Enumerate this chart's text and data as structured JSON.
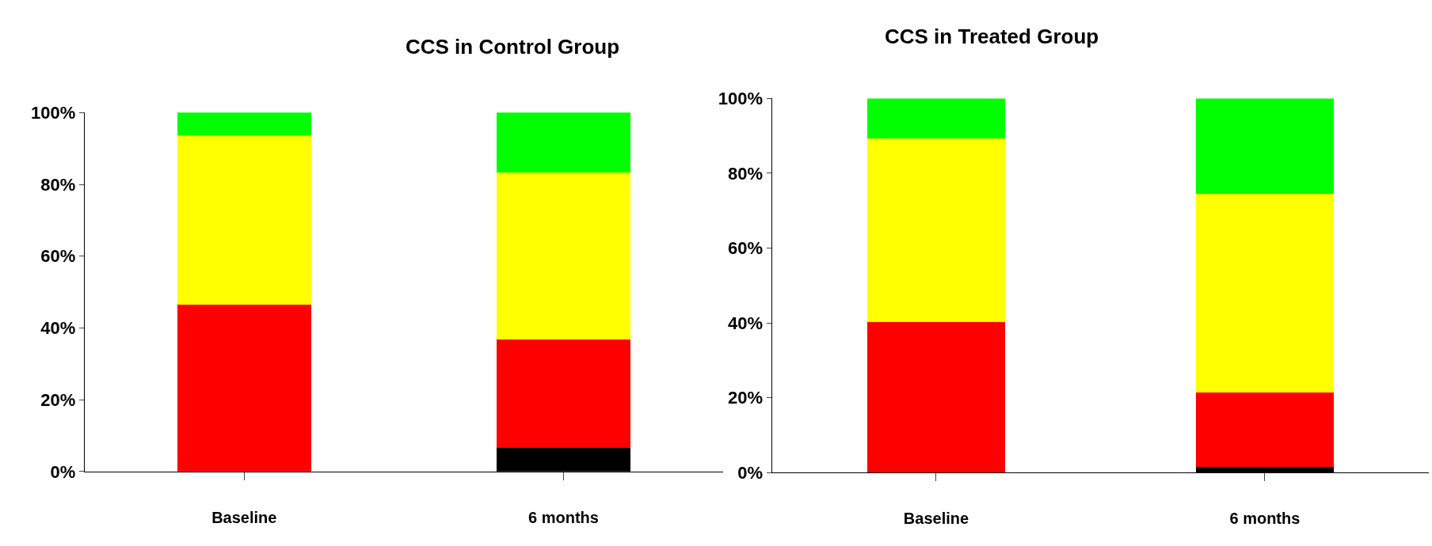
{
  "chart_data": [
    {
      "type": "bar",
      "title": "CCS in Control Group",
      "categories": [
        "Baseline",
        "6 months"
      ],
      "stacked": true,
      "ylim": [
        0,
        100
      ],
      "yticks": [
        {
          "value": 0,
          "label": "0%"
        },
        {
          "value": 20,
          "label": "20%"
        },
        {
          "value": 40,
          "label": "40%"
        },
        {
          "value": 60,
          "label": "60%"
        },
        {
          "value": 80,
          "label": "80%"
        },
        {
          "value": 100,
          "label": "100%"
        }
      ],
      "series": [
        {
          "color": "#000000",
          "values": [
            0,
            6.6
          ]
        },
        {
          "color": "#ff0000",
          "values": [
            46.6,
            30.2
          ]
        },
        {
          "color": "#ffff00",
          "values": [
            47.0,
            46.5
          ]
        },
        {
          "color": "#00ff00",
          "values": [
            6.4,
            16.7
          ]
        }
      ]
    },
    {
      "type": "bar",
      "title": "CCS in Treated Group",
      "categories": [
        "Baseline",
        "6 months"
      ],
      "stacked": true,
      "ylim": [
        0,
        100
      ],
      "yticks": [
        {
          "value": 0,
          "label": "0%"
        },
        {
          "value": 20,
          "label": "20%"
        },
        {
          "value": 40,
          "label": "40%"
        },
        {
          "value": 60,
          "label": "60%"
        },
        {
          "value": 80,
          "label": "80%"
        },
        {
          "value": 100,
          "label": "100%"
        }
      ],
      "series": [
        {
          "color": "#000000",
          "values": [
            0,
            1.6
          ]
        },
        {
          "color": "#ff0000",
          "values": [
            40.2,
            19.8
          ]
        },
        {
          "color": "#ffff00",
          "values": [
            49.0,
            53.0
          ]
        },
        {
          "color": "#00ff00",
          "values": [
            10.8,
            25.6
          ]
        }
      ]
    }
  ]
}
